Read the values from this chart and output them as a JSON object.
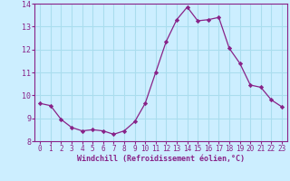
{
  "x": [
    0,
    1,
    2,
    3,
    4,
    5,
    6,
    7,
    8,
    9,
    10,
    11,
    12,
    13,
    14,
    15,
    16,
    17,
    18,
    19,
    20,
    21,
    22,
    23
  ],
  "y": [
    9.65,
    9.55,
    8.95,
    8.6,
    8.45,
    8.5,
    8.45,
    8.3,
    8.45,
    8.85,
    9.65,
    11.0,
    12.35,
    13.3,
    13.85,
    13.25,
    13.3,
    13.4,
    12.05,
    11.4,
    10.45,
    10.35,
    9.8,
    9.5
  ],
  "line_color": "#882288",
  "marker": "D",
  "marker_size": 2.2,
  "bg_color": "#cceeff",
  "grid_color": "#aaddee",
  "xlabel": "Windchill (Refroidissement éolien,°C)",
  "xlabel_color": "#882288",
  "tick_color": "#882288",
  "spine_color": "#882288",
  "ylim": [
    8,
    14
  ],
  "xlim": [
    -0.5,
    23.5
  ],
  "yticks": [
    8,
    9,
    10,
    11,
    12,
    13,
    14
  ],
  "xticks": [
    0,
    1,
    2,
    3,
    4,
    5,
    6,
    7,
    8,
    9,
    10,
    11,
    12,
    13,
    14,
    15,
    16,
    17,
    18,
    19,
    20,
    21,
    22,
    23
  ],
  "tick_fontsize": 5.5,
  "xlabel_fontsize": 6.0
}
